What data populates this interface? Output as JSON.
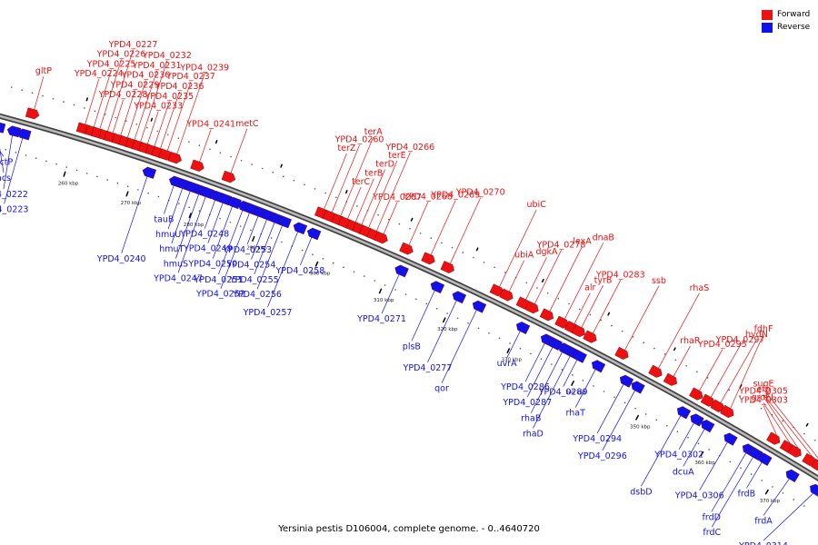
{
  "title": "Yersinia pestis D106004, complete genome. - 0..4640720",
  "legend": [
    {
      "label": "Forward",
      "color": "#ee1111"
    },
    {
      "label": "Reverse",
      "color": "#1111ee"
    }
  ],
  "colors": {
    "forward": "#ee1111",
    "reverse": "#1111ee",
    "backbone": "#777777",
    "tick": "#000000"
  },
  "scale_labels": [
    "260 kbp",
    "270 kbp",
    "280 kbp",
    "290 kbp",
    "300 kbp",
    "310 kbp",
    "320 kbp",
    "330 kbp",
    "340 kbp",
    "350 kbp",
    "360 kbp",
    "370 kbp"
  ],
  "forward_genes": [
    {
      "name": "gltP",
      "pos": 0.067
    },
    {
      "name": "YPD4_0224",
      "pos": 0.126
    },
    {
      "name": "YPD4_0225",
      "pos": 0.136
    },
    {
      "name": "YPD4_0226",
      "pos": 0.143
    },
    {
      "name": "YPD4_0227",
      "pos": 0.152
    },
    {
      "name": "YPD4_0228",
      "pos": 0.158
    },
    {
      "name": "YPD4_0229",
      "pos": 0.167
    },
    {
      "name": "YPD4_0230",
      "pos": 0.175
    },
    {
      "name": "YPD4_0231",
      "pos": 0.183
    },
    {
      "name": "YPD4_0232",
      "pos": 0.19
    },
    {
      "name": "YPD4_0233",
      "pos": 0.198
    },
    {
      "name": "YPD4_0235",
      "pos": 0.206
    },
    {
      "name": "YPD4_0236",
      "pos": 0.213
    },
    {
      "name": "YPD4_0237",
      "pos": 0.221
    },
    {
      "name": "YPD4_0239",
      "pos": 0.232
    },
    {
      "name": "YPD4_0241",
      "pos": 0.258
    },
    {
      "name": "metC",
      "pos": 0.294
    },
    {
      "name": "terZ",
      "pos": 0.401
    },
    {
      "name": "YPD4_0260",
      "pos": 0.41
    },
    {
      "name": "terA",
      "pos": 0.42
    },
    {
      "name": "terC",
      "pos": 0.428
    },
    {
      "name": "terB",
      "pos": 0.437
    },
    {
      "name": "terD",
      "pos": 0.444
    },
    {
      "name": "terE",
      "pos": 0.452
    },
    {
      "name": "YPD4_0266",
      "pos": 0.461
    },
    {
      "name": "YPD4_0267",
      "pos": 0.469
    },
    {
      "name": "YPD4_0268",
      "pos": 0.498
    },
    {
      "name": "YPD4_0269",
      "pos": 0.523
    },
    {
      "name": "YPD4_0270",
      "pos": 0.545
    },
    {
      "name": "ubiC",
      "pos": 0.601
    },
    {
      "name": "ubiA",
      "pos": 0.612
    },
    {
      "name": "dgkA",
      "pos": 0.631
    },
    {
      "name": "YPD4_0278",
      "pos": 0.641
    },
    {
      "name": "lexA",
      "pos": 0.658
    },
    {
      "name": "dnaB",
      "pos": 0.675
    },
    {
      "name": "alr",
      "pos": 0.686
    },
    {
      "name": "tyrB",
      "pos": 0.694
    },
    {
      "name": "YPD4_0283",
      "pos": 0.707
    },
    {
      "name": "ssb",
      "pos": 0.743
    },
    {
      "name": "rhaS",
      "pos": 0.781
    },
    {
      "name": "rhaR",
      "pos": 0.798
    },
    {
      "name": "YPD4_0295",
      "pos": 0.827
    },
    {
      "name": "YPD4_0297",
      "pos": 0.84
    },
    {
      "name": "hydN",
      "pos": 0.851
    },
    {
      "name": "fdhF",
      "pos": 0.862
    },
    {
      "name": "YPD4_0303",
      "pos": 0.914
    },
    {
      "name": "groEL",
      "pos": 0.929
    },
    {
      "name": "YPD4_0305",
      "pos": 0.938
    },
    {
      "name": "efp",
      "pos": 0.954
    },
    {
      "name": "sugE",
      "pos": 0.964
    }
  ],
  "reverse_genes": [
    {
      "name": "actP",
      "pos": 0.016
    },
    {
      "name": "acs",
      "pos": 0.033
    },
    {
      "name": "YPD4_0222",
      "pos": 0.051
    },
    {
      "name": "YPD4_0223",
      "pos": 0.063
    },
    {
      "name": "YPD4_0240",
      "pos": 0.209
    },
    {
      "name": "tauB",
      "pos": 0.24
    },
    {
      "name": "hmuU",
      "pos": 0.25
    },
    {
      "name": "hmuT",
      "pos": 0.259
    },
    {
      "name": "hmuS",
      "pos": 0.269
    },
    {
      "name": "YPD4_0247",
      "pos": 0.277
    },
    {
      "name": "YPD4_0248",
      "pos": 0.288
    },
    {
      "name": "YPD4_0249",
      "pos": 0.297
    },
    {
      "name": "YPD4_0250",
      "pos": 0.308
    },
    {
      "name": "YPD4_0251",
      "pos": 0.32
    },
    {
      "name": "YPD4_0252",
      "pos": 0.328
    },
    {
      "name": "YPD4_0253",
      "pos": 0.338
    },
    {
      "name": "YPD4_0254",
      "pos": 0.348
    },
    {
      "name": "YPD4_0255",
      "pos": 0.357
    },
    {
      "name": "YPD4_0256",
      "pos": 0.366
    },
    {
      "name": "YPD4_0257",
      "pos": 0.384
    },
    {
      "name": "YPD4_0258",
      "pos": 0.4
    },
    {
      "name": "YPD4_0271",
      "pos": 0.501
    },
    {
      "name": "plsB",
      "pos": 0.542
    },
    {
      "name": "YPD4_0277",
      "pos": 0.567
    },
    {
      "name": "qor",
      "pos": 0.59
    },
    {
      "name": "uvrA",
      "pos": 0.64
    },
    {
      "name": "YPD4_0286",
      "pos": 0.668
    },
    {
      "name": "YPD4_0287",
      "pos": 0.677
    },
    {
      "name": "rhaB",
      "pos": 0.688
    },
    {
      "name": "rhaD",
      "pos": 0.697
    },
    {
      "name": "YPD4_0289",
      "pos": 0.705
    },
    {
      "name": "rhaT",
      "pos": 0.726
    },
    {
      "name": "YPD4_0294",
      "pos": 0.758
    },
    {
      "name": "YPD4_0296",
      "pos": 0.771
    },
    {
      "name": "dsbD",
      "pos": 0.823
    },
    {
      "name": "YPD4_0302",
      "pos": 0.838
    },
    {
      "name": "dcuA",
      "pos": 0.85
    },
    {
      "name": "YPD4_0306",
      "pos": 0.876
    },
    {
      "name": "frdD",
      "pos": 0.897
    },
    {
      "name": "frdC",
      "pos": 0.905
    },
    {
      "name": "frdB",
      "pos": 0.915
    },
    {
      "name": "frdA",
      "pos": 0.946
    },
    {
      "name": "YPD4_0314",
      "pos": 0.973
    }
  ]
}
